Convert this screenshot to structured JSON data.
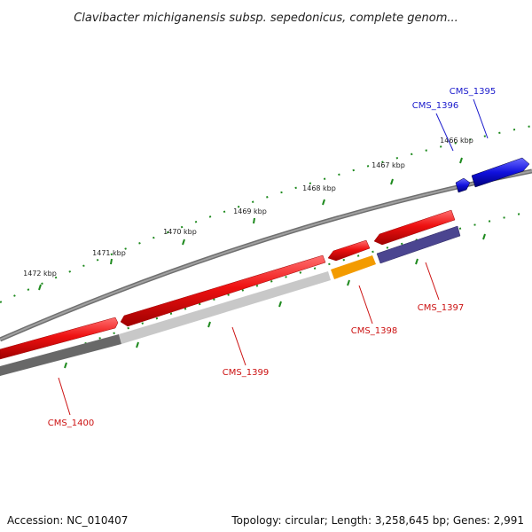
{
  "title": "Clavibacter michiganensis subsp. sepedonicus, complete genom...",
  "footer": {
    "accession": "Accession: NC_010407",
    "summary": "Topology: circular; Length: 3,258,645 bp; Genes: 2,991"
  },
  "kbp_labels": [
    "1466 kbp",
    "1467 kbp",
    "1468 kbp",
    "1469 kbp",
    "1470 kbp",
    "1471 kbp",
    "1472 kbp"
  ],
  "genes": [
    {
      "name": "CMS_1395",
      "label_color": "#1a1acc"
    },
    {
      "name": "CMS_1396",
      "label_color": "#1a1acc"
    },
    {
      "name": "CMS_1397",
      "label_color": "#cc1111"
    },
    {
      "name": "CMS_1398",
      "label_color": "#cc1111"
    },
    {
      "name": "CMS_1399",
      "label_color": "#cc1111"
    },
    {
      "name": "CMS_1400",
      "label_color": "#cc1111"
    }
  ],
  "colors": {
    "forward_gene": "#e81010",
    "blue_gene": "#1010dd",
    "orange_gene": "#f39b00",
    "purple_gene": "#4b4590",
    "light_gray_gene": "#c4c4c4",
    "dark_gray_gene": "#6a6a6a",
    "backbone": "#8a8a8a",
    "tick_green": "#1e8a1e"
  }
}
